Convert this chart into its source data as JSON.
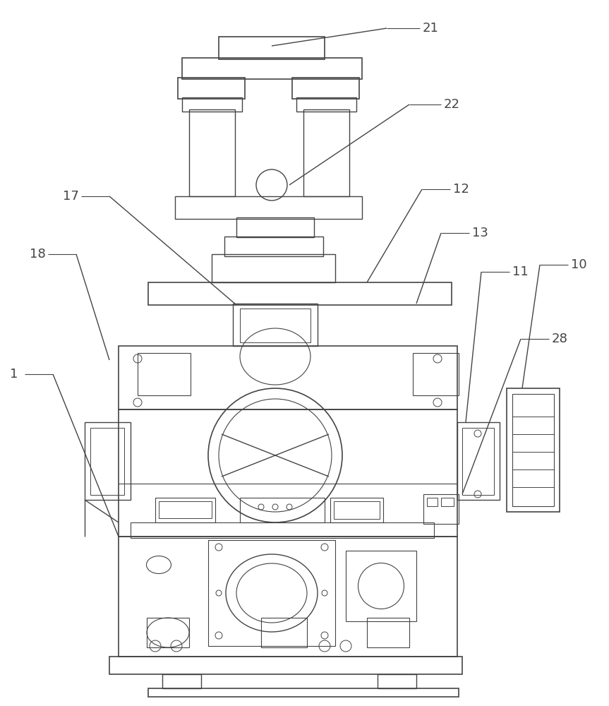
{
  "bg_color": "#ffffff",
  "lc": "#444444",
  "lw": 1.0,
  "fs": 13
}
